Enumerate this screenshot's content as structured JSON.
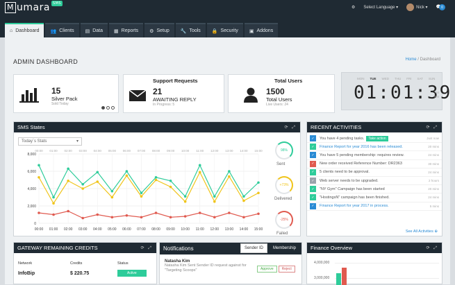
{
  "header": {
    "logo_text": "umara",
    "logo_letter": "M",
    "logo_badge": "SMS",
    "language_label": "Select Language",
    "user_name": "Nick",
    "notification_count": "0"
  },
  "tabs": [
    {
      "label": "Dashboard",
      "icon": "home-icon",
      "active": true
    },
    {
      "label": "Clients",
      "icon": "users-icon"
    },
    {
      "label": "Data",
      "icon": "data-icon"
    },
    {
      "label": "Reports",
      "icon": "reports-icon"
    },
    {
      "label": "Setup",
      "icon": "gear-icon"
    },
    {
      "label": "Tools",
      "icon": "wrench-icon"
    },
    {
      "label": "Security",
      "icon": "lock-icon"
    },
    {
      "label": "Addons",
      "icon": "grid-icon"
    }
  ],
  "page": {
    "title": "ADMIN DASHBOARD",
    "crumb_home": "Home",
    "crumb_sep": "/",
    "crumb_current": "Dashboard"
  },
  "stats": {
    "pack": {
      "number": "15",
      "label": "Silver Pack",
      "sub": "Sold Today"
    },
    "support": {
      "heading": "Support Requests",
      "number": "21",
      "label": "AWAITING REPLY",
      "sub": "In Progress: 5"
    },
    "users": {
      "heading": "Total Users",
      "number": "1500",
      "label": "Total Users",
      "sub": "Live Users: 24"
    }
  },
  "clock": {
    "days": [
      "MON",
      "TUE",
      "WED",
      "THU",
      "FRI",
      "SAT",
      "SUN"
    ],
    "active_day": "TUE",
    "time": "01:01:39",
    "am": "AM",
    "pm": "PM"
  },
  "sms": {
    "title": "SMS States",
    "select_value": "Today`s Stats",
    "gauges": [
      {
        "value": "98%",
        "label": "Sent",
        "color": "#2ecc9a"
      },
      {
        "value": "+73%",
        "label": "Delivered",
        "color": "#f0c419"
      },
      {
        "value": "-25%",
        "label": "Failed",
        "color": "#e05a4f"
      }
    ]
  },
  "chart_data": {
    "type": "line",
    "x": [
      "00:00",
      "01:00",
      "02:00",
      "03:00",
      "04:00",
      "05:00",
      "06:00",
      "07:00",
      "08:00",
      "09:00",
      "10:00",
      "11:00",
      "12:00",
      "13:00",
      "14:00",
      "15:00"
    ],
    "ylim": [
      0,
      8000
    ],
    "yticks": [
      "0",
      "2,000",
      "4,000",
      "6,000",
      "8,000"
    ],
    "series": [
      {
        "name": "Sent",
        "color": "#2ecc9a",
        "values": [
          6700,
          3000,
          6300,
          4500,
          5900,
          3700,
          6000,
          3500,
          5300,
          4900,
          3100,
          6700,
          3100,
          6000,
          3100,
          4700
        ]
      },
      {
        "name": "Delivered",
        "color": "#f0c419",
        "values": [
          5300,
          2300,
          4900,
          4000,
          4800,
          3000,
          5500,
          3100,
          5000,
          4200,
          2500,
          5900,
          2500,
          5400,
          2600,
          3500
        ]
      },
      {
        "name": "Failed",
        "color": "#e05a4f",
        "values": [
          1200,
          1000,
          1400,
          600,
          1000,
          700,
          900,
          700,
          1200,
          700,
          800,
          1200,
          700,
          1200,
          700,
          1100
        ]
      }
    ]
  },
  "activities": {
    "title": "RECENT ACTIVITIES",
    "take_action": "Take action",
    "items": [
      {
        "text": "You have 4 pending tasks.",
        "time": "Just now",
        "color": "#2a8bd4",
        "link": false
      },
      {
        "text": "Finance Report for year 2016 has been released.",
        "time": "20 mins",
        "color": "#2ecc9a",
        "link": true
      },
      {
        "text": "You have 5 pending membership: requires review.",
        "time": "24 mins",
        "color": "#2a8bd4",
        "link": false
      },
      {
        "text": "New order received Reference Number: DR2363",
        "time": "30 mins",
        "color": "#e05a4f",
        "link": false
      },
      {
        "text": "5 clients need to be approval.",
        "time": "24 mins",
        "color": "#2ecc9a",
        "link": false
      },
      {
        "text": "Web server needs to be upgraded.",
        "time": "2 hours",
        "color": "#9aa3ab",
        "link": false
      },
      {
        "text": "\"NY Gym\" Campaign has been started",
        "time": "20 mins",
        "color": "#2ecc9a",
        "link": false
      },
      {
        "text": "\"HostingsN\" campaign has been finished.",
        "time": "24 mins",
        "color": "#2ecc9a",
        "link": false
      },
      {
        "text": "Finance Report for year 2017 in process.",
        "time": "5 mins",
        "color": "#2a8bd4",
        "link": true
      }
    ],
    "see_all": "See All Activities"
  },
  "gateway": {
    "title": "GATEWAY REMAINING CREDITS",
    "col_network": "Network",
    "col_credits": "Credits",
    "col_status": "Status",
    "row_network": "InfoBip",
    "row_credits": "$ 220.75",
    "row_status": "Active"
  },
  "notifications": {
    "title": "Notifications",
    "tab_sender": "Sender ID",
    "tab_membership": "Membership",
    "name": "Natasha Kim",
    "message": "Natasha Kim Sent Sender ID request against for \"Targeting Scoops\"",
    "approve": "Approve",
    "reject": "Reject"
  },
  "finance": {
    "title": "Finance Overview",
    "ytick_top": "4,000,000",
    "ytick_mid": "3,000,000"
  }
}
